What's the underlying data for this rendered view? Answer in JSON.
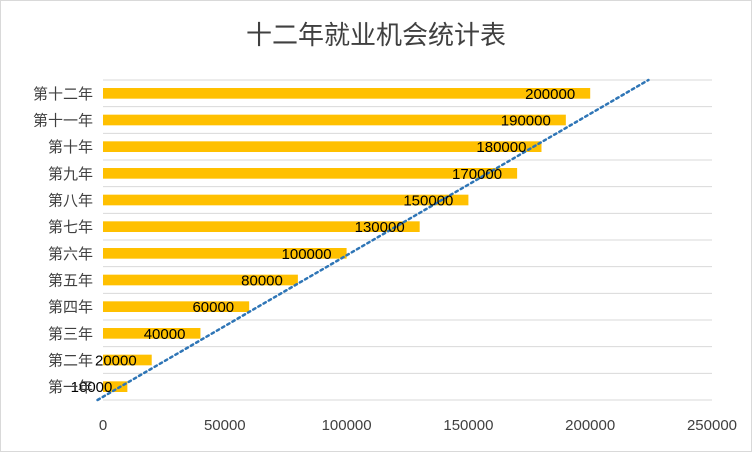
{
  "chart_data": {
    "type": "bar",
    "orientation": "horizontal",
    "title": "十二年就业机会统计表",
    "categories": [
      "第一年",
      "第二年",
      "第三年",
      "第四年",
      "第五年",
      "第六年",
      "第七年",
      "第八年",
      "第九年",
      "第十年",
      "第十一年",
      "第十二年"
    ],
    "values": [
      10000,
      20000,
      40000,
      60000,
      80000,
      100000,
      130000,
      150000,
      170000,
      180000,
      190000,
      200000
    ],
    "data_labels": [
      "10000",
      "20000",
      "40000",
      "60000",
      "80000",
      "100000",
      "130000",
      "150000",
      "170000",
      "180000",
      "190000",
      "200000"
    ],
    "xlim": [
      0,
      250000
    ],
    "x_ticks": [
      0,
      50000,
      100000,
      150000,
      200000,
      250000
    ],
    "x_tick_labels": [
      "0",
      "50000",
      "100000",
      "150000",
      "200000",
      "250000"
    ],
    "grid": true,
    "legend": "none",
    "trendline": {
      "type": "linear",
      "style": "dotted"
    },
    "colors": {
      "bar": "#FFC000",
      "trendline": "#2E75B6",
      "grid": "#D9D9D9",
      "text": "#404040"
    }
  }
}
